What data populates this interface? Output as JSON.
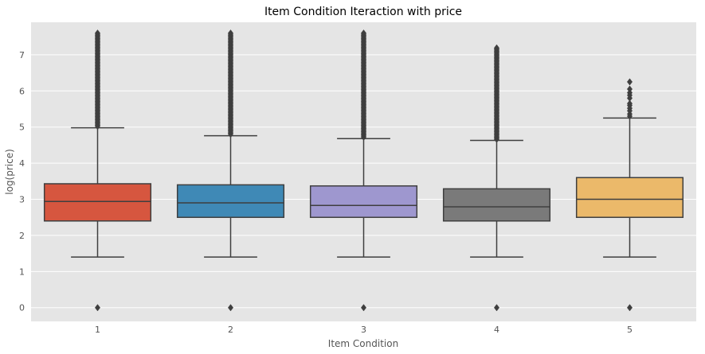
{
  "chart_data": {
    "type": "box",
    "title": "Item Condition Iteraction with price",
    "xlabel": "Item Condition",
    "ylabel": "log(price)",
    "categories": [
      "1",
      "2",
      "3",
      "4",
      "5"
    ],
    "yticks": [
      "0",
      "1",
      "2",
      "3",
      "4",
      "5",
      "6",
      "7"
    ],
    "ylim": [
      -0.38,
      7.9
    ],
    "grid": true,
    "background": "#e5e5e5",
    "box_edge_color": "#3f3f3f",
    "series": [
      {
        "category": "1",
        "color": "#d6563f",
        "whisker_low": 1.4,
        "q1": 2.4,
        "median": 2.94,
        "q3": 3.43,
        "whisker_high": 4.98,
        "fliers_low": [
          0.0
        ],
        "fliers_high_from": 5.02,
        "fliers_high_to": 7.6
      },
      {
        "category": "2",
        "color": "#3f89b6",
        "whisker_low": 1.4,
        "q1": 2.5,
        "median": 2.9,
        "q3": 3.4,
        "whisker_high": 4.76,
        "fliers_low": [
          0.0
        ],
        "fliers_high_from": 4.8,
        "fliers_high_to": 7.6
      },
      {
        "category": "3",
        "color": "#9e97cf",
        "whisker_low": 1.4,
        "q1": 2.5,
        "median": 2.83,
        "q3": 3.37,
        "whisker_high": 4.68,
        "fliers_low": [
          0.0
        ],
        "fliers_high_from": 4.72,
        "fliers_high_to": 7.6
      },
      {
        "category": "4",
        "color": "#7a7a7a",
        "whisker_low": 1.4,
        "q1": 2.4,
        "median": 2.79,
        "q3": 3.29,
        "whisker_high": 4.63,
        "fliers_low": [
          0.0
        ],
        "fliers_high_from": 4.66,
        "fliers_high_to": 7.19
      },
      {
        "category": "5",
        "color": "#ebb96a",
        "whisker_low": 1.4,
        "q1": 2.5,
        "median": 3.0,
        "q3": 3.6,
        "whisker_high": 5.25,
        "fliers_low": [
          0.0
        ],
        "fliers_high": [
          5.3,
          5.36,
          5.45,
          5.52,
          5.6,
          5.65,
          5.8,
          5.88,
          5.95,
          6.05,
          6.25
        ]
      }
    ]
  }
}
